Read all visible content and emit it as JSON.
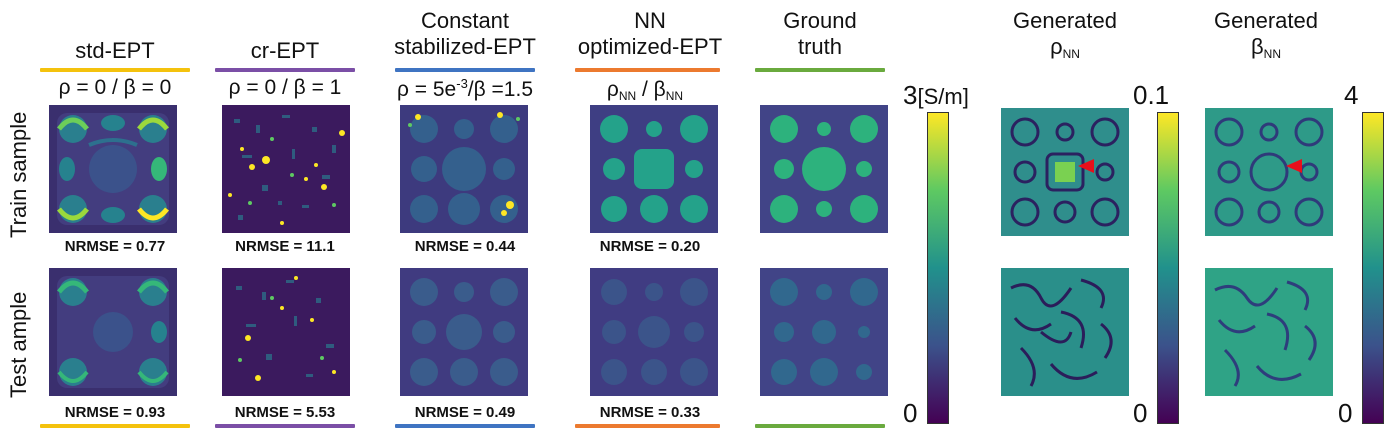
{
  "columns": [
    {
      "id": "std",
      "title": [
        "std-EPT"
      ],
      "param": "ρ = 0 / β = 0",
      "color": "#f4c20d",
      "train_nrmse": "NRMSE = 0.77",
      "test_nrmse": "NRMSE = 0.93"
    },
    {
      "id": "cr",
      "title": [
        "cr-EPT"
      ],
      "param": "ρ = 0 / β = 1",
      "color": "#7b4fa6",
      "train_nrmse": "NRMSE = 11.1",
      "test_nrmse": "NRMSE = 5.53"
    },
    {
      "id": "const",
      "title": [
        "Constant",
        "stabilized-EPT"
      ],
      "param_pre": "ρ = 5e",
      "param_sup": "-3",
      "param_post": "/β =1.5",
      "color": "#3f74c2",
      "train_nrmse": "NRMSE = 0.44",
      "test_nrmse": "NRMSE = 0.49"
    },
    {
      "id": "nn",
      "title": [
        "NN",
        "optimized-EPT"
      ],
      "param_rho": "ρ",
      "param_sub": "NN",
      "param_mid": " / β",
      "param_sub2": "NN",
      "color": "#ec7a2f",
      "train_nrmse": "NRMSE = 0.20",
      "test_nrmse": "NRMSE = 0.33"
    },
    {
      "id": "gt",
      "title": [
        "Ground",
        "truth"
      ],
      "color": "#6aaa3e"
    }
  ],
  "row_labels": {
    "train": "Train sample",
    "test": "Test ample"
  },
  "conductivity_bar": {
    "max": "3",
    "unit": "[S/m]",
    "min": "0"
  },
  "rho_panel": {
    "title": "Generated",
    "symbol": "ρ",
    "sub": "NN",
    "max": "0.1",
    "min": "0"
  },
  "beta_panel": {
    "title": "Generated",
    "symbol": "β",
    "sub": "NN",
    "max": "4",
    "min": "0"
  },
  "colors": {
    "viridis_low": "#440154",
    "viridis_mid": "#21918c",
    "viridis_high": "#fde725",
    "arrow": "#e8101b"
  }
}
